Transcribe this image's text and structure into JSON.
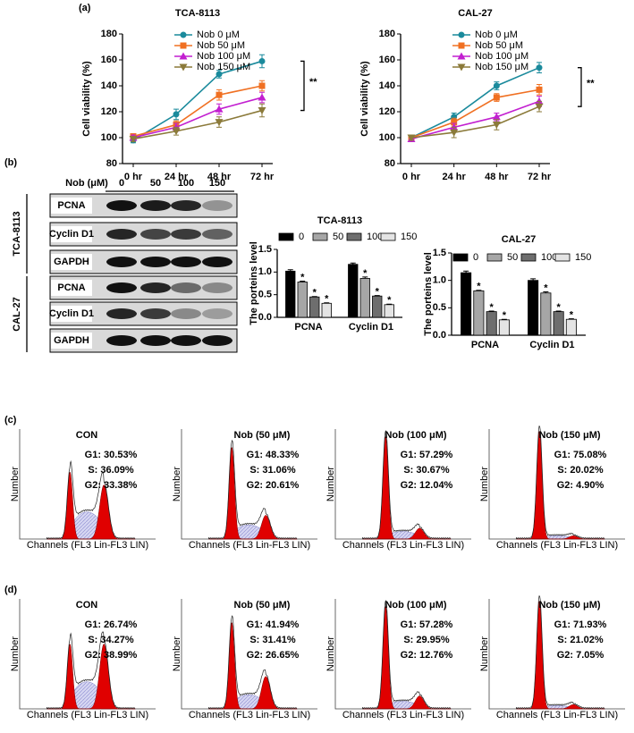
{
  "panel_labels": [
    "(a)",
    "(b)",
    "(c)",
    "(d)"
  ],
  "chart_data": [
    {
      "type": "line",
      "title": "TCA-8113",
      "y_label": "Cell viability (%)",
      "categories": [
        "0 hr",
        "24 hr",
        "48 hr",
        "72 hr"
      ],
      "ylim": [
        80,
        180
      ],
      "yticks": [
        80,
        100,
        120,
        140,
        160,
        180
      ],
      "annotation": "**",
      "series": [
        {
          "name": "Nob 0 μM",
          "color": "#1a8a9c",
          "values": [
            98,
            118,
            149,
            159
          ],
          "errors": [
            2,
            4,
            3,
            5
          ]
        },
        {
          "name": "Nob 50 μM",
          "color": "#f07022",
          "values": [
            101,
            110,
            133,
            140
          ],
          "errors": [
            2,
            3,
            4,
            4
          ]
        },
        {
          "name": "Nob 100 μM",
          "color": "#c21fd0",
          "values": [
            100,
            108,
            122,
            131
          ],
          "errors": [
            2,
            3,
            4,
            4
          ]
        },
        {
          "name": "Nob 150 μM",
          "color": "#8b7a3a",
          "values": [
            99,
            105,
            112,
            121
          ],
          "errors": [
            2,
            3,
            4,
            5
          ]
        }
      ]
    },
    {
      "type": "line",
      "title": "CAL-27",
      "y_label": "Cell viability (%)",
      "categories": [
        "0 hr",
        "24 hr",
        "48 hr",
        "72 hr"
      ],
      "ylim": [
        80,
        180
      ],
      "yticks": [
        80,
        100,
        120,
        140,
        160,
        180
      ],
      "annotation": "**",
      "series": [
        {
          "name": "Nob 0 μM",
          "color": "#1a8a9c",
          "values": [
            100,
            116,
            140,
            154
          ],
          "errors": [
            2,
            3,
            3,
            4
          ]
        },
        {
          "name": "Nob 50 μM",
          "color": "#f07022",
          "values": [
            100,
            112,
            131,
            137
          ],
          "errors": [
            2,
            3,
            3,
            4
          ]
        },
        {
          "name": "Nob 100 μM",
          "color": "#c21fd0",
          "values": [
            99,
            108,
            116,
            128
          ],
          "errors": [
            2,
            3,
            3,
            4
          ]
        },
        {
          "name": "Nob 150 μM",
          "color": "#8b7a3a",
          "values": [
            100,
            104,
            110,
            124
          ],
          "errors": [
            2,
            4,
            4,
            4
          ]
        }
      ]
    },
    {
      "type": "bar",
      "title": "TCA-8113",
      "y_label": "The porteins level",
      "categories": [
        "PCNA",
        "Cyclin D1"
      ],
      "ylim": [
        0,
        1.5
      ],
      "yticks": [
        {
          "value": 0,
          "label": "0.0"
        },
        0.5,
        {
          "value": 1,
          "label": "1.0"
        },
        1.5
      ],
      "series": [
        {
          "name": "0",
          "color": "#000000",
          "values": [
            1.02,
            1.17
          ],
          "errors": [
            0.03,
            0.03
          ]
        },
        {
          "name": "50",
          "color": "#a6a6a6",
          "values": [
            0.78,
            0.86
          ],
          "errors": [
            0.02,
            0.03
          ],
          "annotations": [
            "*",
            "*"
          ]
        },
        {
          "name": "100",
          "color": "#6e6e6e",
          "values": [
            0.45,
            0.47
          ],
          "errors": [
            0.01,
            0.01
          ],
          "annotations": [
            "*",
            "*"
          ]
        },
        {
          "name": "150",
          "color": "#e4e4e4",
          "values": [
            0.31,
            0.28
          ],
          "errors": [
            0.01,
            0.01
          ],
          "annotations": [
            "*",
            "*"
          ]
        }
      ]
    },
    {
      "type": "bar",
      "title": "CAL-27",
      "y_label": "The porteins level",
      "categories": [
        "PCNA",
        "Cyclin D1"
      ],
      "ylim": [
        0,
        1.5
      ],
      "yticks": [
        {
          "value": 0,
          "label": "0.0"
        },
        0.5,
        {
          "value": 1,
          "label": "1.0"
        },
        1.5
      ],
      "series": [
        {
          "name": "0",
          "color": "#000000",
          "values": [
            1.14,
            1.0
          ],
          "errors": [
            0.03,
            0.03
          ]
        },
        {
          "name": "50",
          "color": "#a6a6a6",
          "values": [
            0.81,
            0.77
          ],
          "errors": [
            0.01,
            0.02
          ],
          "annotations": [
            "*",
            "*"
          ]
        },
        {
          "name": "100",
          "color": "#6e6e6e",
          "values": [
            0.43,
            0.43
          ],
          "errors": [
            0.01,
            0.01
          ],
          "annotations": [
            "*",
            "*"
          ]
        },
        {
          "name": "150",
          "color": "#e4e4e4",
          "values": [
            0.28,
            0.29
          ],
          "errors": [
            0.01,
            0.01
          ],
          "annotations": [
            "*",
            "*"
          ]
        }
      ]
    }
  ],
  "blot": {
    "header": "Nob (μM)",
    "doses": [
      "0",
      "50",
      "100",
      "150"
    ],
    "groups": [
      {
        "name": "TCA-8113",
        "rows": [
          "PCNA",
          "Cyclin D1",
          "GAPDH"
        ]
      },
      {
        "name": "CAL-27",
        "rows": [
          "PCNA",
          "Cyclin D1",
          "GAPDH"
        ]
      }
    ]
  },
  "flow": {
    "x_label": "Channels (FL3 Lin-FL3 LIN)",
    "y_label": "Number",
    "rows": [
      {
        "panels": [
          {
            "title": "CON",
            "stats": [
              "G1: 30.53%",
              "S: 36.09%",
              "G2: 33.38%"
            ]
          },
          {
            "title": "Nob (50 μM)",
            "stats": [
              "G1: 48.33%",
              "S: 31.06%",
              "G2: 20.61%"
            ]
          },
          {
            "title": "Nob (100 μM)",
            "stats": [
              "G1: 57.29%",
              "S: 30.67%",
              "G2: 12.04%"
            ]
          },
          {
            "title": "Nob (150 μM)",
            "stats": [
              "G1: 75.08%",
              "S: 20.02%",
              "G2: 4.90%"
            ]
          }
        ]
      },
      {
        "panels": [
          {
            "title": "CON",
            "stats": [
              "G1: 26.74%",
              "S: 34.27%",
              "G2: 38.99%"
            ]
          },
          {
            "title": "Nob (50 μM)",
            "stats": [
              "G1: 41.94%",
              "S: 31.41%",
              "G2: 26.65%"
            ]
          },
          {
            "title": "Nob (100 μM)",
            "stats": [
              "G1: 57.28%",
              "S: 29.95%",
              "G2: 12.76%"
            ]
          },
          {
            "title": "Nob (150 μM)",
            "stats": [
              "G1: 71.93%",
              "S: 21.02%",
              "G2: 7.05%"
            ]
          }
        ]
      }
    ]
  }
}
